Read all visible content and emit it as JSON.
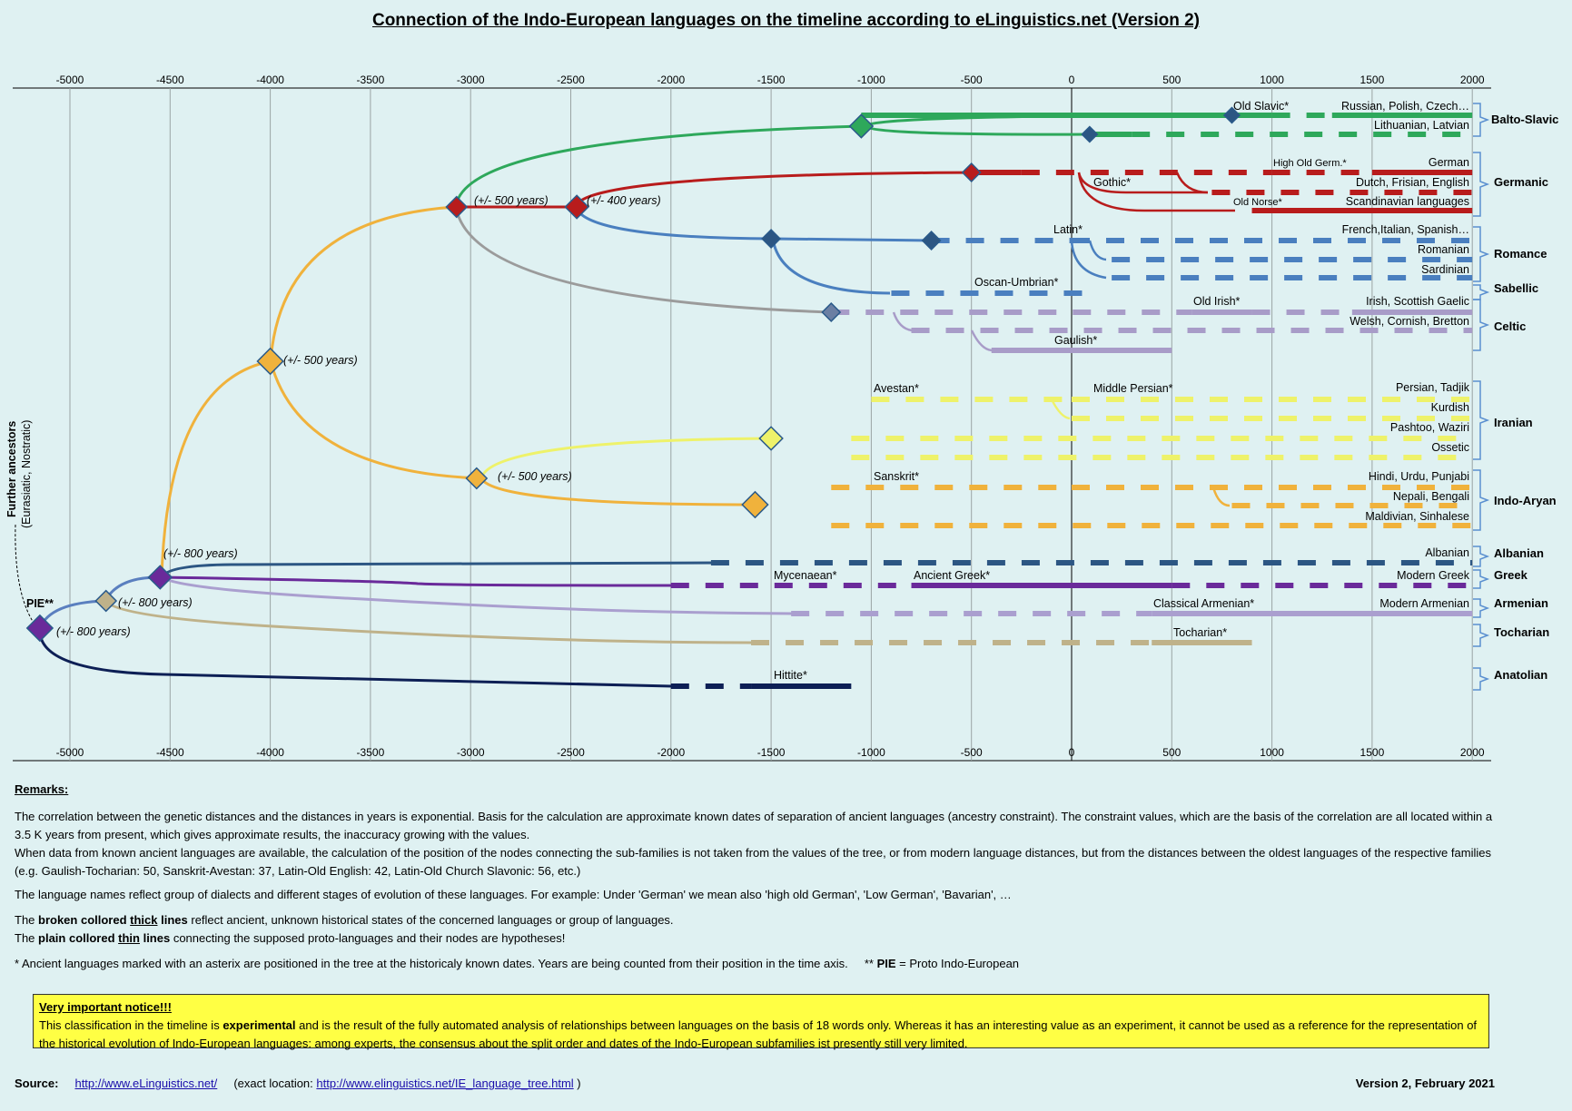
{
  "title": "Connection of the Indo-European languages on the timeline according to eLinguistics.net (Version 2)",
  "axis_ticks": [
    -5000,
    -4500,
    -4000,
    -3500,
    -3000,
    -2500,
    -2000,
    -1500,
    -1000,
    -500,
    0,
    500,
    1000,
    1500,
    2000
  ],
  "side_label": {
    "main": "Further ancestors",
    "sub": "(Eurasiatic, Nostratic)"
  },
  "pie_label": "PIE**",
  "colors": {
    "balto_slavic": "#2ea85b",
    "germanic": "#b81c1c",
    "romance": "#4a7fbf",
    "celtic": "#a89cc8",
    "iranian": "#eef26a",
    "indo_aryan": "#f0b23c",
    "albanian": "#2c5683",
    "greek": "#6a2a9a",
    "armenian": "#aa9fcf",
    "tocharian": "#bfb28a",
    "anatolian": "#0d1f55",
    "pie": "#6a2a9a",
    "proto": "#f0b23c",
    "grey": "#9b9b9b"
  },
  "node_labels": [
    {
      "id": "n1",
      "text": "(+/- 800 years)"
    },
    {
      "id": "n2",
      "text": "(+/- 800 years)"
    },
    {
      "id": "n3",
      "text": "(+/- 800 years)"
    },
    {
      "id": "n4",
      "text": "(+/- 500 years)"
    },
    {
      "id": "n5",
      "text": "(+/- 500 years)"
    },
    {
      "id": "n6",
      "text": "(+/- 500 years)"
    },
    {
      "id": "n7",
      "text": "(+/- 400 years)"
    }
  ],
  "ancient_labels": [
    "Old Slavic*",
    "High Old Germ.*",
    "Gothic*",
    "Old Norse*",
    "Latin*",
    "Oscan-Umbrian*",
    "Old Irish*",
    "Gaulish*",
    "Avestan*",
    "Middle Persian*",
    "Sanskrit*",
    "Mycenaean*",
    "Ancient Greek*",
    "Classical Armenian*",
    "Tocharian*",
    "Hittite*"
  ],
  "languages": [
    "Russian, Polish, Czech…",
    "Lithuanian, Latvian",
    "German",
    "Dutch, Frisian, English",
    "Scandinavian languages",
    "French,Italian, Spanish…",
    "Romanian",
    "Sardinian",
    "Irish, Scottish Gaelic",
    "Welsh, Cornish, Bretton",
    "Persian, Tadjik",
    "Kurdish",
    "Pashtoo, Waziri",
    "Ossetic",
    "Hindi, Urdu, Punjabi",
    "Nepali, Bengali",
    "Maldivian, Sinhalese",
    "Albanian",
    "Modern Greek",
    "Modern Armenian"
  ],
  "groups": [
    "Balto-Slavic",
    "Germanic",
    "Romance",
    "Sabellic",
    "Celtic",
    "Iranian",
    "Indo-Aryan",
    "Albanian",
    "Greek",
    "Armenian",
    "Tocharian",
    "Anatolian"
  ],
  "remarks": {
    "heading": "Remarks:",
    "p1a": "The correlation between the genetic distances and the distances in years is exponential. Basis for the calculation are approximate known dates of separation of ancient languages (ancestry constraint). The constraint values, which are the basis of the correlation are all located within a 3.5 K years from present, which gives approximate results, the inaccuracy growing with the values.",
    "p1b": "When data from known ancient languages are available, the calculation of the position of the nodes connecting the sub-families is not taken from the values of the tree, or from modern language distances, but from the distances between the oldest languages of the respective families (e.g. Gaulish-Tocharian: 50, Sanskrit-Avestan: 37, Latin-Old English: 42, Latin-Old Church Slavonic: 56, etc.)",
    "p2": "The language names reflect group of dialects and different stages of evolution of these languages. For example: Under 'German' we mean also 'high old German',  'Low German', 'Bavarian', …",
    "p3_pre": "The ",
    "p3_b1": "broken collored ",
    "p3_u1": "thick",
    "p3_b2": " lines",
    "p3_post": " reflect ancient, unknown historical states of the concerned languages or group of languages.",
    "p4_pre": "The ",
    "p4_b1": "plain collored ",
    "p4_u1": "thin",
    "p4_b2": " lines",
    "p4_post": " connecting the supposed proto-languages and their nodes are hypotheses!",
    "p5": "* Ancient languages marked with an asterix are positioned in the tree at the historicaly known dates. Years are being counted from their position in the time axis.",
    "p5_pie_pre": "** ",
    "p5_pie_b": "PIE",
    "p5_pie_post": " = Proto Indo-European"
  },
  "notice": {
    "heading": "Very important notice!!!",
    "t_pre": "This classification in the timeline is ",
    "t_b": "experimental",
    "t_post": " and is the result of the fully automated analysis of relationships between languages on the basis of 18 words only. Whereas it has an interesting value as an experiment, it cannot be used as a reference for the representation of the historical evolution of Indo-European languages: among experts, the consensus about the split order and dates of the Indo-European subfamilies ist presently still very limited."
  },
  "source": {
    "label": "Source:",
    "link": "http://www.eLinguistics.net/",
    "pre": "(exact location: ",
    "link2": "http://www.elinguistics.net/IE_language_tree.html",
    "post": " )"
  },
  "version": "Version 2,  February 2021"
}
